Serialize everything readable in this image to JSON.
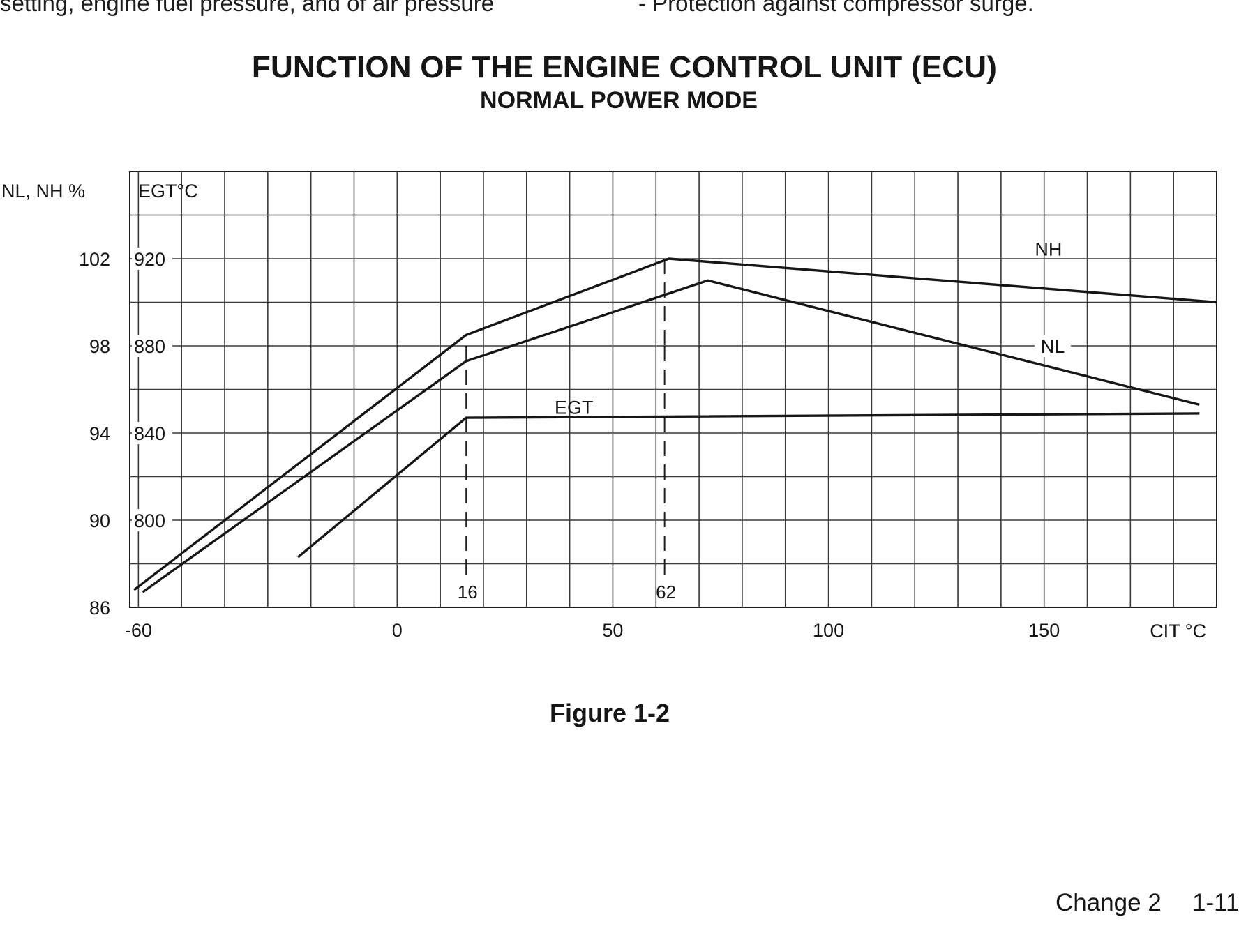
{
  "page": {
    "top_left_text": "setting, engine fuel pressure, and of air pressure",
    "top_right_text": "-  Protection against compressor surge.",
    "figure_caption": "Figure 1-2",
    "footer_change": "Change 2",
    "footer_page": "1-11"
  },
  "chart_data": {
    "type": "line",
    "title": "FUNCTION OF THE ENGINE CONTROL UNIT (ECU)",
    "subtitle": "NORMAL POWER MODE",
    "xlabel": "CIT °C",
    "ylabel_left": "NL, NH %",
    "ylabel_inner": "EGT°C",
    "xlim": [
      -62,
      190
    ],
    "ylim_left": [
      86,
      106
    ],
    "ylim_inner": [
      760,
      960
    ],
    "x_ticks": [
      {
        "value": -60,
        "label": "-60"
      },
      {
        "value": 0,
        "label": "0"
      },
      {
        "value": 50,
        "label": "50"
      },
      {
        "value": 100,
        "label": "100"
      },
      {
        "value": 150,
        "label": "150"
      }
    ],
    "y_ticks_left": [
      {
        "value": 102,
        "label": "102"
      },
      {
        "value": 98,
        "label": "98"
      },
      {
        "value": 94,
        "label": "94"
      },
      {
        "value": 90,
        "label": "90"
      },
      {
        "value": 86,
        "label": "86"
      }
    ],
    "y_ticks_inner": [
      {
        "value": 920,
        "label": "920"
      },
      {
        "value": 880,
        "label": "880"
      },
      {
        "value": 840,
        "label": "840"
      },
      {
        "value": 800,
        "label": "800"
      }
    ],
    "grid": true,
    "series": [
      {
        "name": "NH",
        "axis": "left",
        "points": [
          [
            -61,
            86.8
          ],
          [
            16,
            98.5
          ],
          [
            63,
            102.0
          ],
          [
            190,
            100.0
          ]
        ]
      },
      {
        "name": "NL",
        "axis": "left",
        "points": [
          [
            -59,
            86.7
          ],
          [
            16,
            97.3
          ],
          [
            72,
            101.0
          ],
          [
            186,
            95.3
          ]
        ]
      },
      {
        "name": "EGT",
        "axis": "inner",
        "points": [
          [
            -23,
            783
          ],
          [
            16,
            847
          ],
          [
            186,
            849
          ]
        ]
      }
    ],
    "markers": [
      {
        "x": 16,
        "label": "16"
      },
      {
        "x": 62,
        "label": "62"
      }
    ]
  }
}
